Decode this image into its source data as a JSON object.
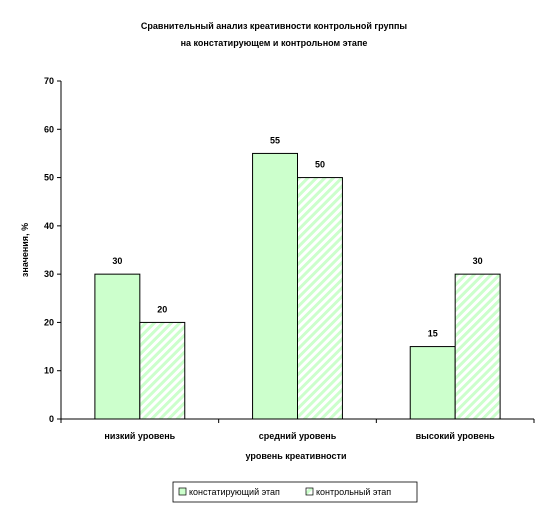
{
  "chart_data": {
    "type": "bar",
    "title_lines": [
      "Сравнительный анализ креативности контрольной группы",
      "на констатирующем и контрольном этапе"
    ],
    "xlabel": "уровень креативности",
    "ylabel": "значения, %",
    "categories": [
      "низкий уровень",
      "средний уровень",
      "высокий уровень"
    ],
    "series": [
      {
        "name": "констатирующий этап",
        "values": [
          30,
          55,
          15
        ],
        "fill": "#ccffcc",
        "pattern": "solid"
      },
      {
        "name": "контрольный этап",
        "values": [
          20,
          50,
          30
        ],
        "fill": "#ccffcc",
        "pattern": "diagonal-stripes"
      }
    ],
    "ylim": [
      0,
      70
    ],
    "yticks": [
      0,
      10,
      20,
      30,
      40,
      50,
      60,
      70
    ],
    "grid": false,
    "legend_position": "bottom-center",
    "colors": {
      "bar_fill": "#ccffcc",
      "stripe": "#ccffcc",
      "outline": "#000000"
    }
  }
}
